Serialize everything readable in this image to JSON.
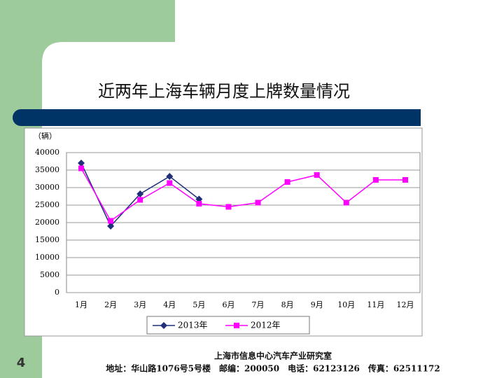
{
  "slide": {
    "title": "近两年上海车辆月度上牌数量情况",
    "page_number": "4",
    "footer": [
      "上海市信息中心汽车产业研究室",
      "地址：华山路1076号5号楼　邮编：200050　电话：62123126　传真：62511172"
    ]
  },
  "chart_data": {
    "type": "line",
    "y_label": "（辆）",
    "categories": [
      "1月",
      "2月",
      "3月",
      "4月",
      "5月",
      "6月",
      "7月",
      "8月",
      "9月",
      "10月",
      "11月",
      "12月"
    ],
    "series": [
      {
        "name": "2013年",
        "color": "#1f2f7a",
        "marker": "diamond",
        "values": [
          37000,
          19000,
          28200,
          33200,
          26700,
          null,
          null,
          null,
          null,
          null,
          null,
          null
        ]
      },
      {
        "name": "2012年",
        "color": "#ff00ff",
        "marker": "square",
        "values": [
          35500,
          20500,
          26500,
          31300,
          25400,
          24500,
          25700,
          31600,
          33600,
          25700,
          32200,
          32200
        ]
      }
    ],
    "ylim": [
      0,
      40000
    ],
    "yticks": [
      0,
      5000,
      10000,
      15000,
      20000,
      25000,
      30000,
      35000,
      40000
    ],
    "grid": true,
    "legend": "bottom"
  }
}
